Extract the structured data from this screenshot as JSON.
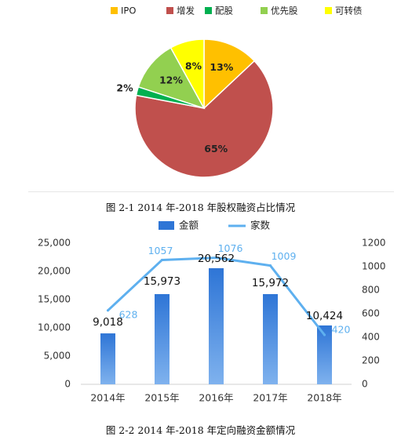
{
  "chart_data": [
    {
      "type": "pie",
      "title": "",
      "caption": "图 2-1   2014 年-2018 年股权融资占比情况",
      "legend_position": "top",
      "slices": [
        {
          "label": "IPO",
          "value": 13,
          "value_label": "13%",
          "color": "#ffc000"
        },
        {
          "label": "增发",
          "value": 65,
          "value_label": "65%",
          "color": "#c0504d"
        },
        {
          "label": "配股",
          "value": 2,
          "value_label": "2%",
          "color": "#00b050"
        },
        {
          "label": "优先股",
          "value": 12,
          "value_label": "12%",
          "color": "#92d050"
        },
        {
          "label": "可转债",
          "value": 8,
          "value_label": "8%",
          "color": "#ffff00"
        }
      ]
    },
    {
      "type": "bar",
      "title": "",
      "caption": "图 2-2   2014 年-2018 年定向融资金额情况",
      "legend_position": "top",
      "grid": false,
      "categories": [
        "2014年",
        "2015年",
        "2016年",
        "2017年",
        "2018年"
      ],
      "series": [
        {
          "name": "金额",
          "type": "bar",
          "axis": "left",
          "values": [
            9018,
            15973,
            20562,
            15972,
            10424
          ],
          "value_labels": [
            "9,018",
            "15,973",
            "20,562",
            "15,972",
            "10,424"
          ],
          "color": "#2e75d6"
        },
        {
          "name": "家数",
          "type": "line",
          "axis": "right",
          "values": [
            628,
            1057,
            1076,
            1009,
            420
          ],
          "value_labels": [
            "628",
            "1057",
            "1076",
            "1009",
            "420"
          ],
          "color": "#5eb0ef"
        }
      ],
      "y_left": {
        "range": [
          0,
          25000
        ],
        "ticks": [
          "0",
          "5,000",
          "10,000",
          "15,000",
          "20,000",
          "25,000"
        ]
      },
      "y_right": {
        "range": [
          0,
          1200
        ],
        "ticks": [
          "0",
          "200",
          "400",
          "600",
          "800",
          "1000",
          "1200"
        ]
      }
    }
  ]
}
